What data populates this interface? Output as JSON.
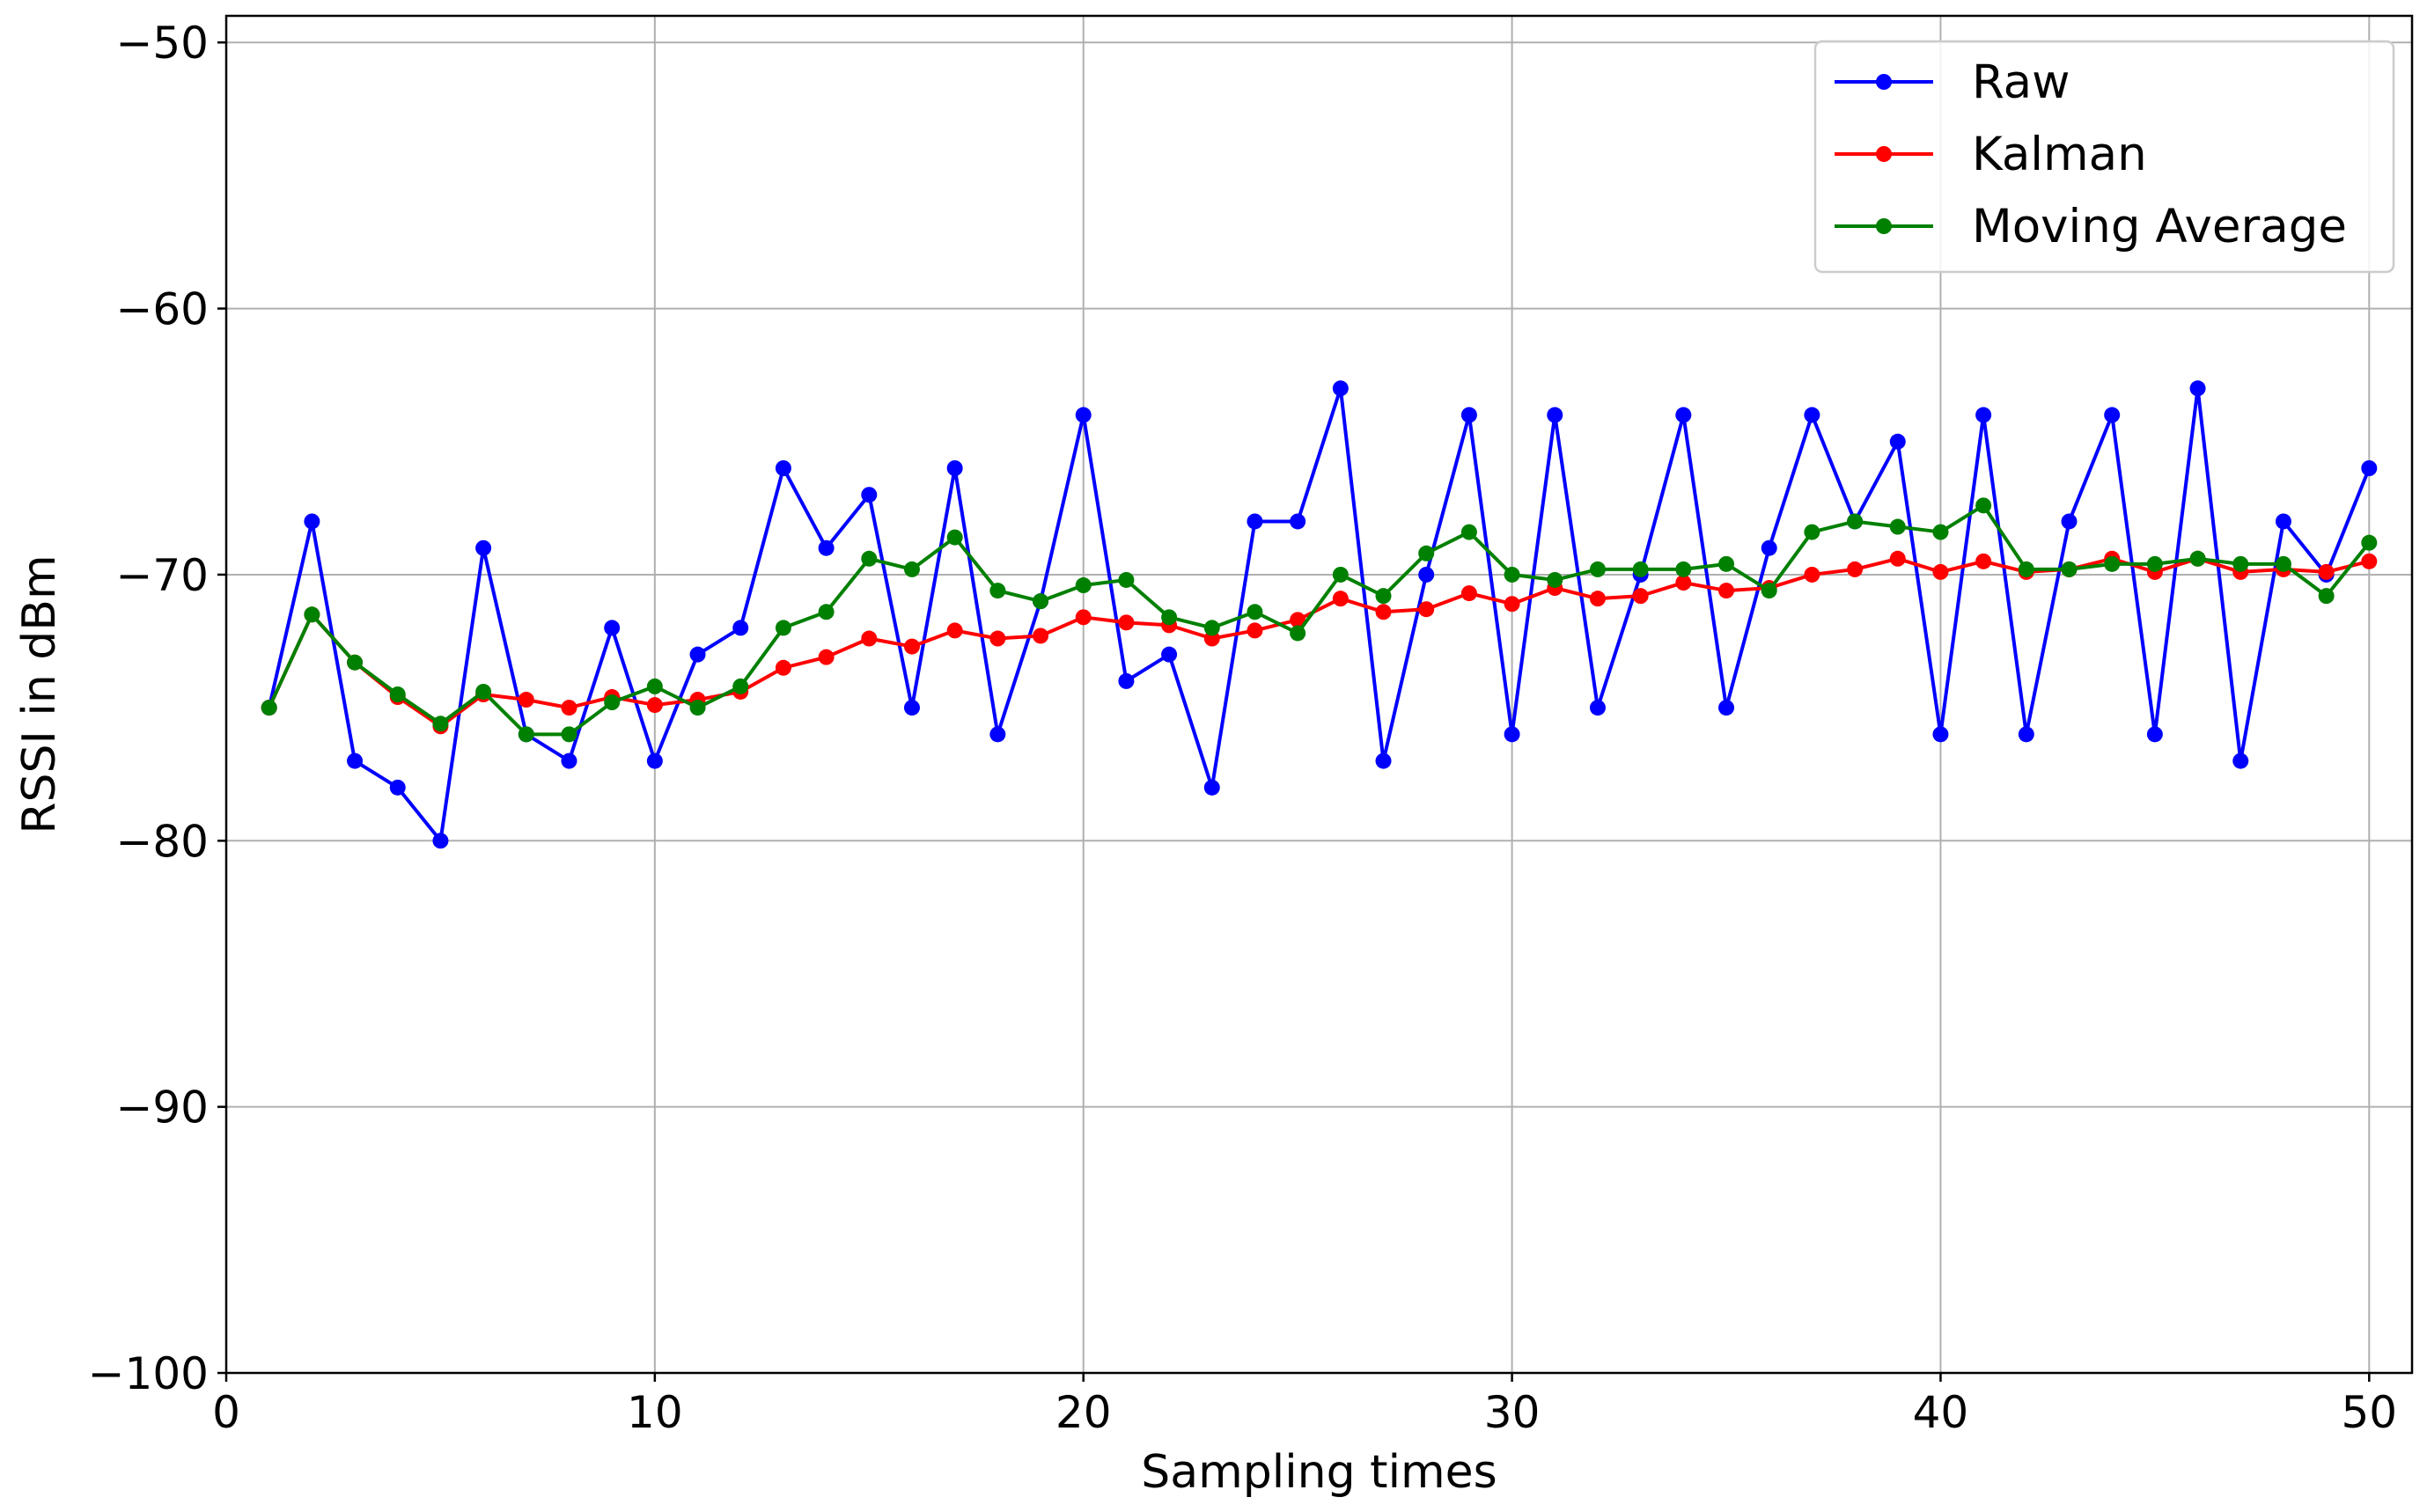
{
  "chart_data": {
    "type": "line",
    "title": "",
    "xlabel": "Sampling times",
    "ylabel": "RSSI in dBm",
    "xlim": [
      0,
      51
    ],
    "ylim": [
      -100,
      -49
    ],
    "xticks": [
      0,
      10,
      20,
      30,
      40,
      50
    ],
    "yticks": [
      -100,
      -90,
      -80,
      -70,
      -60,
      -50
    ],
    "xtick_labels": [
      "0",
      "10",
      "20",
      "30",
      "40",
      "50"
    ],
    "ytick_labels": [
      "−100",
      "−90",
      "−80",
      "−70",
      "−60",
      "−50"
    ],
    "grid": true,
    "legend_position": "top-right",
    "x": [
      1,
      2,
      3,
      4,
      5,
      6,
      7,
      8,
      9,
      10,
      11,
      12,
      13,
      14,
      15,
      16,
      17,
      18,
      19,
      20,
      21,
      22,
      23,
      24,
      25,
      26,
      27,
      28,
      29,
      30,
      31,
      32,
      33,
      34,
      35,
      36,
      37,
      38,
      39,
      40,
      41,
      42,
      43,
      44,
      45,
      46,
      47,
      48,
      49,
      50
    ],
    "series": [
      {
        "name": "Raw",
        "color": "#0000ff",
        "values": [
          -75,
          -68,
          -77,
          -78,
          -80,
          -69,
          -76,
          -77,
          -72,
          -77,
          -73,
          -72,
          -66,
          -69,
          -67,
          -75,
          -66,
          -76,
          -71,
          -64,
          -74,
          -73,
          -78,
          -68,
          -68,
          -63,
          -77,
          -70,
          -64,
          -76,
          -64,
          -75,
          -70,
          -64,
          -75,
          -69,
          -64,
          -68,
          -65,
          -76,
          -64,
          -76,
          -68,
          -64,
          -76,
          -63,
          -77,
          -68,
          -70,
          -66
        ]
      },
      {
        "name": "Kalman",
        "color": "#ff0000",
        "values": [
          -75,
          -71.5,
          -73.3,
          -74.6,
          -75.7,
          -74.5,
          -74.7,
          -75,
          -74.6,
          -74.9,
          -74.7,
          -74.4,
          -73.5,
          -73.1,
          -72.4,
          -72.7,
          -72.1,
          -72.4,
          -72.3,
          -71.6,
          -71.8,
          -71.9,
          -72.4,
          -72.1,
          -71.7,
          -70.9,
          -71.4,
          -71.3,
          -70.7,
          -71.1,
          -70.5,
          -70.9,
          -70.8,
          -70.3,
          -70.6,
          -70.5,
          -70,
          -69.8,
          -69.4,
          -69.9,
          -69.5,
          -69.9,
          -69.8,
          -69.4,
          -69.9,
          -69.4,
          -69.9,
          -69.8,
          -69.9,
          -69.5
        ]
      },
      {
        "name": "Moving Average",
        "color": "#008000",
        "values": [
          -75,
          -71.5,
          -73.3,
          -74.5,
          -75.6,
          -74.4,
          -76,
          -76,
          -74.8,
          -74.2,
          -75,
          -74.2,
          -72,
          -71.4,
          -69.4,
          -69.8,
          -68.6,
          -70.6,
          -71,
          -70.4,
          -70.2,
          -71.6,
          -72,
          -71.4,
          -72.2,
          -70,
          -70.8,
          -69.2,
          -68.4,
          -70,
          -70.2,
          -69.8,
          -69.8,
          -69.8,
          -69.6,
          -70.6,
          -68.4,
          -68,
          -68.2,
          -68.4,
          -67.4,
          -69.8,
          -69.8,
          -69.6,
          -69.6,
          -69.4,
          -69.6,
          -69.6,
          -70.8,
          -68.8
        ]
      }
    ]
  }
}
